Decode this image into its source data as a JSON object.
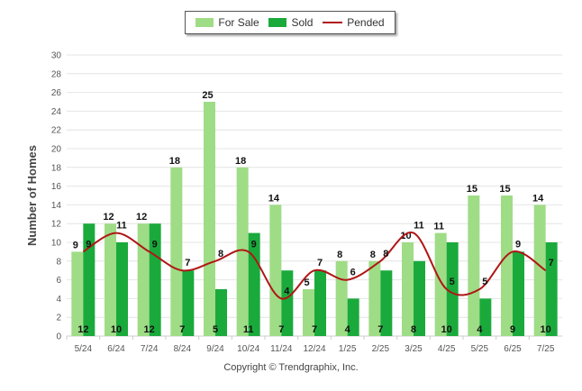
{
  "legend": {
    "for_sale": "For Sale",
    "sold": "Sold",
    "pended": "Pended"
  },
  "copyright": "Copyright © Trendgraphix, Inc.",
  "colors": {
    "for_sale": "#9fdc86",
    "sold": "#1aaa3c",
    "pended": "#b01616",
    "grid": "#e4e4e4",
    "axis_text": "#555555"
  },
  "chart_data": {
    "type": "bar",
    "ylabel": "Number of Homes",
    "ylim": [
      0,
      30
    ],
    "yticks": [
      0,
      2,
      4,
      6,
      8,
      10,
      12,
      14,
      16,
      18,
      20,
      22,
      24,
      26,
      28,
      30
    ],
    "grid": true,
    "legend_position": "top-center",
    "categories": [
      "5/24",
      "6/24",
      "7/24",
      "8/24",
      "9/24",
      "10/24",
      "11/24",
      "12/24",
      "1/25",
      "2/25",
      "3/25",
      "4/25",
      "5/25",
      "6/25",
      "7/25"
    ],
    "series": [
      {
        "name": "For Sale",
        "type": "bar",
        "values": [
          9,
          12,
          12,
          18,
          25,
          18,
          14,
          5,
          8,
          8,
          10,
          11,
          15,
          15,
          14
        ]
      },
      {
        "name": "Sold",
        "type": "bar",
        "values": [
          12,
          10,
          12,
          7,
          5,
          11,
          7,
          7,
          4,
          7,
          8,
          10,
          4,
          9,
          10
        ]
      },
      {
        "name": "Pended",
        "type": "line",
        "values": [
          9,
          11,
          9,
          7,
          8,
          9,
          4,
          7,
          6,
          8,
          11,
          5,
          5,
          9,
          7
        ]
      }
    ]
  }
}
